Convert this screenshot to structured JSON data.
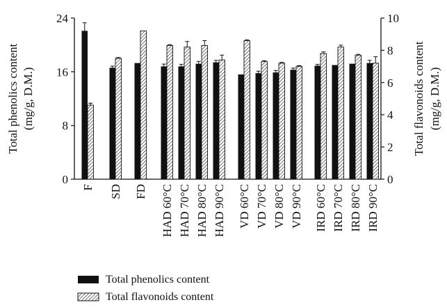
{
  "chart_data": {
    "type": "bar",
    "categories": [
      "F",
      "SD",
      "FD",
      "HAD 60°C",
      "HAD 70°C",
      "HAD 80°C",
      "HAD 90°C",
      "VD 60°C",
      "VD 70°C",
      "VD 80°C",
      "VD 90°C",
      "IRD 60°C",
      "IRD 70°C",
      "IRD 80°C",
      "IRD 90°C"
    ],
    "y_left": {
      "label_line1": "Total phenolics content",
      "label_line2": "(mg/g, D.M.)",
      "range": [
        0,
        24
      ],
      "ticks": [
        0,
        8,
        16,
        24
      ]
    },
    "y_right": {
      "label_line1": "Total flavonoids content",
      "label_line2": "(mg/g, D.M.)",
      "range": [
        0,
        10
      ],
      "ticks": [
        0,
        2,
        4,
        6,
        8,
        10
      ]
    },
    "series": [
      {
        "name": "Total phenolics content",
        "axis": "left",
        "pattern": "solid",
        "color": "#111111",
        "values": [
          22.1,
          16.6,
          17.3,
          16.8,
          16.8,
          17.2,
          17.4,
          15.6,
          15.8,
          15.9,
          16.3,
          16.9,
          17.0,
          17.2,
          17.3
        ],
        "errors": [
          1.2,
          0.25,
          0,
          0.35,
          0.3,
          0.35,
          0.3,
          0,
          0.3,
          0.3,
          0.25,
          0.2,
          0,
          0,
          0.4
        ]
      },
      {
        "name": "Total flavonoids content",
        "axis": "right",
        "pattern": "hatched",
        "color": "#555555",
        "values": [
          4.6,
          7.5,
          9.2,
          8.3,
          8.2,
          8.3,
          7.4,
          8.6,
          7.3,
          7.2,
          7.0,
          7.8,
          8.2,
          7.7,
          7.2
        ],
        "errors": [
          0.12,
          0.05,
          0,
          0.05,
          0.35,
          0.3,
          0.3,
          0.05,
          0.05,
          0.05,
          0.05,
          0.1,
          0.12,
          0.05,
          0.4
        ]
      }
    ],
    "legend_position": "bottom-left",
    "grid": false
  }
}
